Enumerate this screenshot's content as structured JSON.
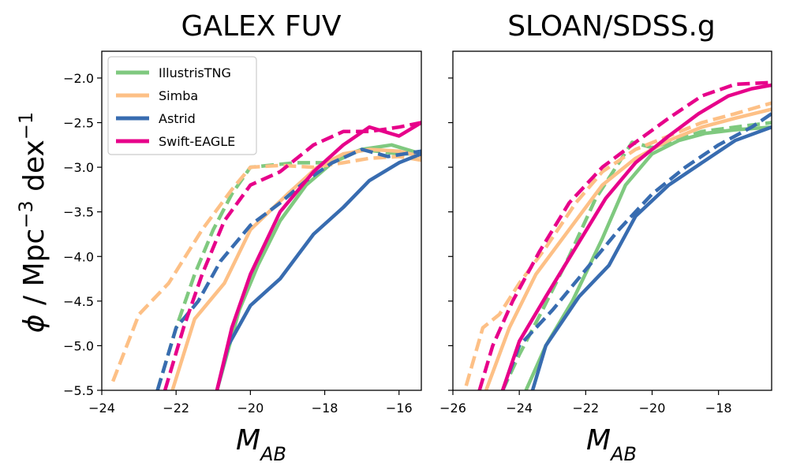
{
  "figure": {
    "ylabel_html": "",
    "xlabel": "M_AB"
  },
  "colors": {
    "IllustrisTNG": "#7fc97f",
    "Simba": "#fdc086",
    "Astrid": "#386cb0",
    "Swift-EAGLE": "#e7008a"
  },
  "legend": {
    "entries": [
      "IllustrisTNG",
      "Simba",
      "Astrid",
      "Swift-EAGLE"
    ],
    "placement": "upper-left of left panel"
  },
  "chart_data": [
    {
      "type": "line",
      "title": "GALEX FUV",
      "xlabel": "M_AB",
      "ylabel": "φ / Mpc⁻³ dex⁻¹",
      "xlim": [
        -24,
        -15.4
      ],
      "ylim": [
        -5.5,
        -1.7
      ],
      "xticks": [
        -24,
        -22,
        -20,
        -18,
        -16
      ],
      "yticks": [
        -5.5,
        -5.0,
        -4.5,
        -4.0,
        -3.5,
        -3.0,
        -2.5,
        -2.0
      ],
      "ytick_labels": [
        "−5.5",
        "−5.0",
        "−4.5",
        "−4.0",
        "−3.5",
        "−3.0",
        "−2.5",
        "−2.0"
      ],
      "xtick_labels": [
        "−24",
        "−22",
        "−20",
        "−18",
        "−16"
      ],
      "series": [
        {
          "name": "IllustrisTNG",
          "style": "solid",
          "x": [
            -20.9,
            -20.7,
            -20.3,
            -19.8,
            -19.2,
            -18.5,
            -17.8,
            -17.0,
            -16.2,
            -15.4
          ],
          "y": [
            -5.5,
            -5.2,
            -4.6,
            -4.1,
            -3.6,
            -3.2,
            -2.95,
            -2.8,
            -2.75,
            -2.85
          ]
        },
        {
          "name": "IllustrisTNG",
          "style": "dashed",
          "x": [
            -22.5,
            -22.0,
            -21.5,
            -21.0,
            -20.5,
            -20.0,
            -19.5,
            -18.8,
            -18.0,
            -17.0,
            -16.0,
            -15.4
          ],
          "y": [
            -5.5,
            -4.8,
            -4.2,
            -3.7,
            -3.3,
            -3.0,
            -2.98,
            -2.95,
            -2.95,
            -2.8,
            -2.85,
            -2.85
          ]
        },
        {
          "name": "Simba",
          "style": "solid",
          "x": [
            -22.1,
            -21.5,
            -20.7,
            -20.0,
            -19.0,
            -18.2,
            -17.5,
            -16.8,
            -16.0,
            -15.4
          ],
          "y": [
            -5.5,
            -4.7,
            -4.3,
            -3.7,
            -3.3,
            -3.0,
            -2.85,
            -2.8,
            -2.82,
            -2.88
          ]
        },
        {
          "name": "Simba",
          "style": "dashed",
          "x": [
            -23.7,
            -23.0,
            -22.2,
            -21.3,
            -20.5,
            -20.0,
            -19.2,
            -18.3,
            -17.5,
            -16.8,
            -16.0,
            -15.4
          ],
          "y": [
            -5.4,
            -4.65,
            -4.3,
            -3.7,
            -3.25,
            -3.0,
            -2.98,
            -3.0,
            -2.95,
            -2.9,
            -2.88,
            -2.92
          ]
        },
        {
          "name": "Astrid",
          "style": "solid",
          "x": [
            -20.9,
            -20.6,
            -20.0,
            -19.2,
            -18.3,
            -17.5,
            -16.8,
            -16.0,
            -15.4
          ],
          "y": [
            -5.5,
            -5.0,
            -4.55,
            -4.25,
            -3.75,
            -3.45,
            -3.15,
            -2.95,
            -2.85
          ]
        },
        {
          "name": "Astrid",
          "style": "dashed",
          "x": [
            -22.5,
            -22.0,
            -21.4,
            -20.8,
            -20.0,
            -19.2,
            -18.5,
            -17.8,
            -17.0,
            -16.3,
            -15.4
          ],
          "y": [
            -5.5,
            -4.8,
            -4.5,
            -4.05,
            -3.65,
            -3.4,
            -3.15,
            -2.95,
            -2.8,
            -2.88,
            -2.82
          ]
        },
        {
          "name": "Swift-EAGLE",
          "style": "solid",
          "x": [
            -20.9,
            -20.5,
            -20.0,
            -19.2,
            -18.3,
            -17.5,
            -16.8,
            -16.0,
            -15.4
          ],
          "y": [
            -5.5,
            -4.8,
            -4.2,
            -3.5,
            -3.05,
            -2.75,
            -2.55,
            -2.65,
            -2.5
          ]
        },
        {
          "name": "Swift-EAGLE",
          "style": "dashed",
          "x": [
            -22.3,
            -21.8,
            -21.3,
            -20.7,
            -20.0,
            -19.2,
            -18.3,
            -17.5,
            -16.8,
            -16.0,
            -15.4
          ],
          "y": [
            -5.5,
            -4.8,
            -4.2,
            -3.6,
            -3.2,
            -3.05,
            -2.75,
            -2.6,
            -2.6,
            -2.55,
            -2.5
          ]
        }
      ]
    },
    {
      "type": "line",
      "title": "SLOAN/SDSS.g",
      "xlabel": "M_AB",
      "ylabel": "",
      "xlim": [
        -26,
        -16.4
      ],
      "ylim": [
        -5.5,
        -1.7
      ],
      "xticks": [
        -26,
        -24,
        -22,
        -20,
        -18
      ],
      "yticks": [
        -5.5,
        -5.0,
        -4.5,
        -4.0,
        -3.5,
        -3.0,
        -2.5,
        -2.0
      ],
      "xtick_labels": [
        "−26",
        "−24",
        "−22",
        "−20",
        "−18"
      ],
      "series": [
        {
          "name": "IllustrisTNG",
          "style": "solid",
          "x": [
            -23.8,
            -23.2,
            -22.4,
            -21.5,
            -20.8,
            -20.0,
            -19.2,
            -18.4,
            -17.5,
            -16.4
          ],
          "y": [
            -5.5,
            -5.0,
            -4.5,
            -3.8,
            -3.2,
            -2.85,
            -2.7,
            -2.62,
            -2.58,
            -2.55
          ]
        },
        {
          "name": "IllustrisTNG",
          "style": "dashed",
          "x": [
            -24.5,
            -24.0,
            -23.3,
            -22.5,
            -21.7,
            -21.0,
            -20.6,
            -20.0,
            -19.3,
            -18.5,
            -17.5,
            -16.4
          ],
          "y": [
            -5.5,
            -5.1,
            -4.6,
            -4.0,
            -3.35,
            -2.95,
            -2.72,
            -2.78,
            -2.7,
            -2.6,
            -2.55,
            -2.5
          ]
        },
        {
          "name": "Simba",
          "style": "solid",
          "x": [
            -25.0,
            -24.3,
            -23.5,
            -22.5,
            -21.5,
            -20.5,
            -19.5,
            -18.5,
            -17.5,
            -16.4
          ],
          "y": [
            -5.5,
            -4.8,
            -4.2,
            -3.7,
            -3.2,
            -2.9,
            -2.7,
            -2.55,
            -2.45,
            -2.35
          ]
        },
        {
          "name": "Simba",
          "style": "dashed",
          "x": [
            -25.6,
            -25.1,
            -24.6,
            -24.0,
            -23.2,
            -22.3,
            -21.5,
            -20.5,
            -19.5,
            -18.5,
            -17.5,
            -16.4
          ],
          "y": [
            -5.45,
            -4.8,
            -4.65,
            -4.3,
            -3.9,
            -3.4,
            -3.05,
            -2.8,
            -2.65,
            -2.5,
            -2.4,
            -2.28
          ]
        },
        {
          "name": "Astrid",
          "style": "solid",
          "x": [
            -23.6,
            -23.2,
            -22.2,
            -21.3,
            -20.5,
            -19.5,
            -18.5,
            -17.5,
            -16.4
          ],
          "y": [
            -5.5,
            -5.0,
            -4.45,
            -4.1,
            -3.55,
            -3.2,
            -2.95,
            -2.7,
            -2.55
          ]
        },
        {
          "name": "Astrid",
          "style": "dashed",
          "x": [
            -24.5,
            -24.0,
            -23.0,
            -22.0,
            -21.0,
            -20.0,
            -19.0,
            -18.0,
            -17.0,
            -16.4
          ],
          "y": [
            -5.5,
            -5.0,
            -4.6,
            -4.15,
            -3.7,
            -3.3,
            -3.0,
            -2.75,
            -2.55,
            -2.4
          ]
        },
        {
          "name": "Swift-EAGLE",
          "style": "solid",
          "x": [
            -24.5,
            -24.0,
            -23.2,
            -22.3,
            -21.4,
            -20.5,
            -19.5,
            -18.6,
            -17.7,
            -17.0,
            -16.4
          ],
          "y": [
            -5.5,
            -4.95,
            -4.45,
            -3.9,
            -3.35,
            -2.95,
            -2.65,
            -2.4,
            -2.2,
            -2.12,
            -2.08
          ]
        },
        {
          "name": "Swift-EAGLE",
          "style": "dashed",
          "x": [
            -25.2,
            -24.8,
            -24.2,
            -23.4,
            -22.5,
            -21.5,
            -20.5,
            -19.5,
            -18.5,
            -17.5,
            -16.4
          ],
          "y": [
            -5.5,
            -5.0,
            -4.5,
            -3.95,
            -3.4,
            -3.0,
            -2.72,
            -2.45,
            -2.2,
            -2.07,
            -2.05
          ]
        }
      ]
    }
  ]
}
